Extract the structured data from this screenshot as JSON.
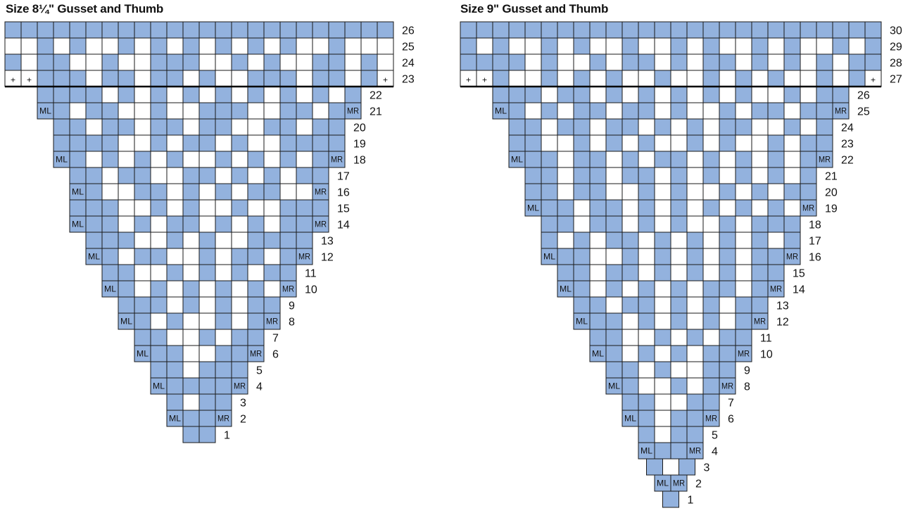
{
  "colors": {
    "contrast": "#93b2de",
    "background": "#ffffff",
    "grid": "#1a1a1a"
  },
  "charts": [
    {
      "title": "Size 8¼\" Gusset and Thumb",
      "rows": [
        {
          "num": "26",
          "cells": "CCCCCCCCCCCCCCCCCCCCCCCC"
        },
        {
          "num": "25",
          "cells": "BBCBCBBCBCBCBCBCBCBBCBBB"
        },
        {
          "num": "24",
          "cells": "CBCCBBCBBCCCBBCBCBBCCBCB"
        },
        {
          "num": "23",
          "cells": "++CCCBCCBCCBCBBCCCBCCBC+",
          "marks": {
            "0": "+",
            "1": "+",
            "23": "+"
          }
        },
        {
          "num": "22",
          "cells": "CCCCBCBCBCBCBCBCBCBC"
        },
        {
          "num": "21",
          "cells": "CCBCCBBCBBCCCBBCCBCC",
          "marks": {
            "0": "ML",
            "19": "MR"
          }
        },
        {
          "num": "20",
          "cells": "CCBCCBCCBCCBBCCBCC"
        },
        {
          "num": "19",
          "cells": "CCCCBBCBCCBCBBCCCC"
        },
        {
          "num": "18",
          "cells": "CCBCBCBCBBCBCBCBCC",
          "marks": {
            "0": "ML",
            "17": "MR"
          }
        },
        {
          "num": "17",
          "cells": "CCBCCBBCCBCBCBCC"
        },
        {
          "num": "16",
          "cells": "CCBBCCBCBCBCCBBC",
          "marks": {
            "0": "ML",
            "15": "MR"
          }
        },
        {
          "num": "15",
          "cells": "CCCBBCBCBBCBBCCC"
        },
        {
          "num": "14",
          "cells": "CCCBCBCCBCBCBCCC",
          "marks": {
            "0": "ML",
            "15": "MR"
          }
        },
        {
          "num": "13",
          "cells": "CCCBBCBCBBCCCC"
        },
        {
          "num": "12",
          "cells": "CCBCCBBCBCCBCC",
          "marks": {
            "0": "ML",
            "13": "MR"
          }
        },
        {
          "num": "11",
          "cells": "CCBBCBCBCBCC"
        },
        {
          "num": "10",
          "cells": "CCBCBCBCBCBC",
          "marks": {
            "0": "ML",
            "11": "MR"
          }
        },
        {
          "num": "9",
          "cells": "CCCBCBCBCC"
        },
        {
          "num": "8",
          "cells": "CCBCBBCBCC",
          "marks": {
            "0": "ML",
            "9": "MR"
          }
        },
        {
          "num": "7",
          "cells": "CCBBCBCC"
        },
        {
          "num": "6",
          "cells": "CCCBBCCC",
          "marks": {
            "0": "ML",
            "7": "MR"
          }
        },
        {
          "num": "5",
          "cells": "CCBCCC"
        },
        {
          "num": "4",
          "cells": "CCCCCC",
          "marks": {
            "0": "ML",
            "5": "MR"
          }
        },
        {
          "num": "3",
          "cells": "CBCC"
        },
        {
          "num": "2",
          "cells": "CCCC",
          "marks": {
            "0": "ML",
            "3": "MR"
          }
        },
        {
          "num": "1",
          "cells": "CC"
        }
      ]
    },
    {
      "title": "Size 9\" Gusset and Thumb",
      "rows": [
        {
          "num": "30",
          "cells": "CCCCCCCCCCCCCCCCCCCCCCCCCC"
        },
        {
          "num": "29",
          "cells": "CBCBBCBCBBCBBCBCBBCBCBBCBC"
        },
        {
          "num": "28",
          "cells": "CCCCBCBBCBCCBCBCCBCBCBCBCC"
        },
        {
          "num": "27",
          "cells": "++CBBCBCBCBBCBBCBCBCBBCBC+",
          "marks": {
            "0": "+",
            "1": "+",
            "25": "+"
          }
        },
        {
          "num": "26",
          "cells": "CCCBCCBCBCBCBCBCBBCBCC"
        },
        {
          "num": "25",
          "cells": "CCBCBCCBCCBCBBCBCCBCCC",
          "marks": {
            "0": "ML",
            "21": "MR"
          }
        },
        {
          "num": "24",
          "cells": "CCBCCBCCBCBCBCCBBCBC"
        },
        {
          "num": "23",
          "cells": "CCBBCBCBCBBCBCBBCBCC"
        },
        {
          "num": "22",
          "cells": "CCCBCCBCBCCBCBCBCBCC",
          "marks": {
            "0": "ML",
            "19": "MR"
          }
        },
        {
          "num": "21",
          "cells": "CCBCCBCCBCBCBCBCBC"
        },
        {
          "num": "20",
          "cells": "CCBCCBBCBCBBCBCBCC"
        },
        {
          "num": "19",
          "cells": "CCCBCCBCBCBCBCBCBC",
          "marks": {
            "0": "ML",
            "17": "MR"
          }
        },
        {
          "num": "18",
          "cells": "CCBCCBCBCBBCBCCC"
        },
        {
          "num": "17",
          "cells": "CBCBCCBCBCBCBCBC"
        },
        {
          "num": "16",
          "cells": "CCCBBCBCBCBCBCCC",
          "marks": {
            "0": "ML",
            "15": "MR"
          }
        },
        {
          "num": "15",
          "cells": "CCBCCBCBCBCBCC"
        },
        {
          "num": "14",
          "cells": "CCBCBCBCBCCBCC",
          "marks": {
            "0": "ML",
            "13": "MR"
          }
        },
        {
          "num": "13",
          "cells": "CCBCCBCBCBCC"
        },
        {
          "num": "12",
          "cells": "CCCBCBCBCBCC",
          "marks": {
            "0": "ML",
            "11": "MR"
          }
        },
        {
          "num": "11",
          "cells": "CCBBCBCBCC"
        },
        {
          "num": "10",
          "cells": "CCBCBCBCCC",
          "marks": {
            "0": "ML",
            "9": "MR"
          }
        },
        {
          "num": "9",
          "cells": "CCBCBBCC"
        },
        {
          "num": "8",
          "cells": "CCBBCBCC",
          "marks": {
            "0": "ML",
            "7": "MR"
          }
        },
        {
          "num": "7",
          "cells": "CCBBCC"
        },
        {
          "num": "6",
          "cells": "CCBCCC",
          "marks": {
            "0": "ML",
            "5": "MR"
          }
        },
        {
          "num": "5",
          "cells": "CBCC"
        },
        {
          "num": "4",
          "cells": "CCCC",
          "marks": {
            "0": "ML",
            "3": "MR"
          }
        },
        {
          "num": "3",
          "cells": "CBC"
        },
        {
          "num": "2",
          "cells": "CC",
          "marks": {
            "0": "ML",
            "1": "MR"
          }
        },
        {
          "num": "1",
          "cells": "C"
        }
      ]
    }
  ]
}
